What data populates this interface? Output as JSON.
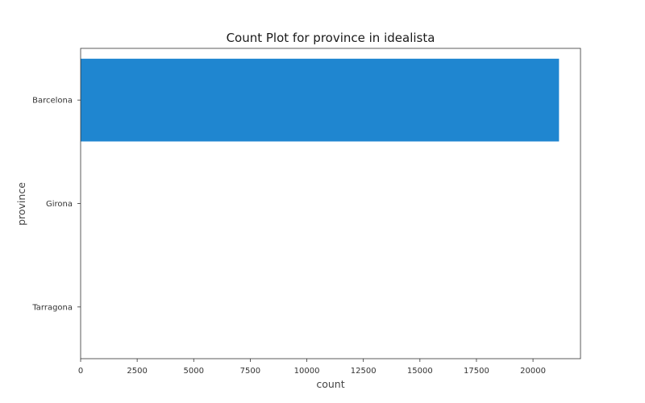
{
  "colors": {
    "bar": "#1f86d0",
    "background": "#ffffff",
    "axis": "#333333",
    "text": "#1a1a1a"
  },
  "chart_data": {
    "type": "bar",
    "orientation": "horizontal",
    "title": "Count Plot for province in idealista",
    "xlabel": "count",
    "ylabel": "province",
    "categories": [
      "Barcelona",
      "Girona",
      "Tarragona"
    ],
    "values": [
      21150,
      0,
      0
    ],
    "xlim": [
      0,
      22100
    ],
    "xticks": [
      0,
      2500,
      5000,
      7500,
      10000,
      12500,
      15000,
      17500,
      20000
    ],
    "xtick_labels": [
      "0",
      "2500",
      "5000",
      "7500",
      "10000",
      "12500",
      "15000",
      "17500",
      "20000"
    ],
    "grid": false,
    "legend": "none"
  }
}
